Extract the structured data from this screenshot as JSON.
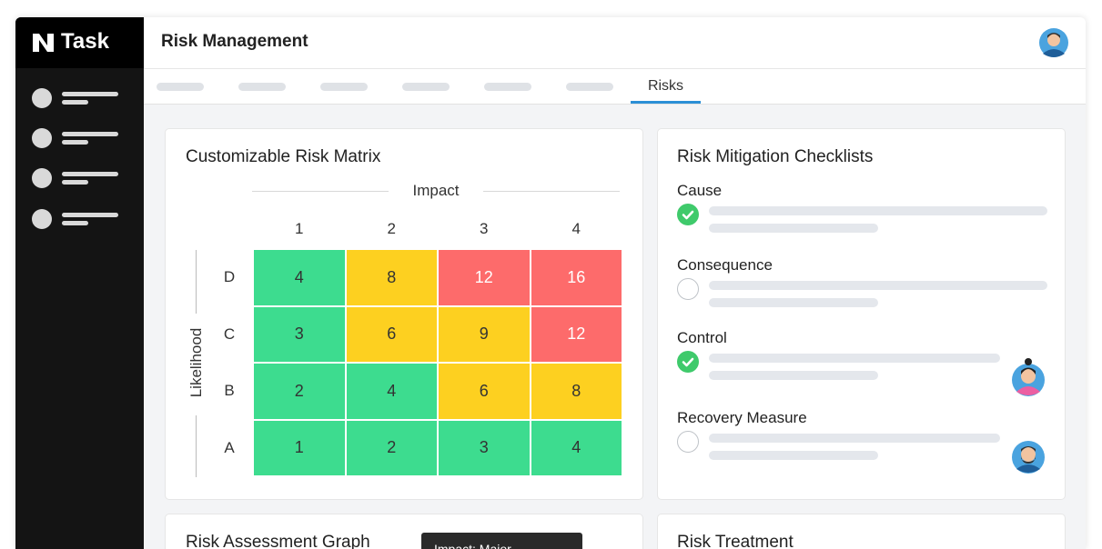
{
  "app": {
    "logo": "Task",
    "page_title": "Risk Management",
    "active_tab": "Risks"
  },
  "risk_matrix": {
    "title": "Customizable Risk Matrix",
    "column_axis": "Impact",
    "row_axis": "Likelihood",
    "columns": [
      "1",
      "2",
      "3",
      "4"
    ],
    "rows": [
      {
        "label": "D",
        "values": [
          4,
          8,
          12,
          16
        ],
        "colors": [
          "#3ddc8f",
          "#fdd020",
          "#fd6b6b",
          "#fd6b6b"
        ]
      },
      {
        "label": "C",
        "values": [
          3,
          6,
          9,
          12
        ],
        "colors": [
          "#3ddc8f",
          "#fdd020",
          "#fdd020",
          "#fd6b6b"
        ]
      },
      {
        "label": "B",
        "values": [
          2,
          4,
          6,
          8
        ],
        "colors": [
          "#3ddc8f",
          "#3ddc8f",
          "#fdd020",
          "#fdd020"
        ]
      },
      {
        "label": "A",
        "values": [
          1,
          2,
          3,
          4
        ],
        "colors": [
          "#3ddc8f",
          "#3ddc8f",
          "#3ddc8f",
          "#3ddc8f"
        ]
      }
    ]
  },
  "checklists": {
    "title": "Risk Mitigation Checklists",
    "items": [
      {
        "label": "Cause",
        "checked": true
      },
      {
        "label": "Consequence",
        "checked": false
      },
      {
        "label": "Control",
        "checked": true
      },
      {
        "label": "Recovery Measure",
        "checked": false
      }
    ]
  },
  "bottom_cards": {
    "graph_title": "Risk Assessment Graph",
    "tooltip": "Impact: Major",
    "treatment_title": "Risk Treatment"
  }
}
